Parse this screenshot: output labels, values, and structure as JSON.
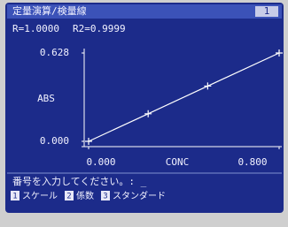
{
  "header": {
    "title": "定量演算/検量線",
    "badge": "1"
  },
  "chart_data": {
    "type": "line",
    "annotations": [
      "R=1.0000",
      "R2=0.9999"
    ],
    "ylabel": "ABS",
    "xlabel": "CONC",
    "x": [
      0,
      0.25,
      0.5,
      0.8
    ],
    "series": [
      {
        "color": "#ffffff",
        "values": [
          0,
          0.196,
          0.393,
          0.628
        ]
      }
    ],
    "xlim": [
      0,
      0.8
    ],
    "ylim": [
      0,
      0.628
    ],
    "xticks": [
      {
        "value": 0,
        "label": "0.000"
      },
      {
        "value": 0.8,
        "label": "0.800"
      }
    ],
    "yticks": [
      {
        "value": 0,
        "label": "0.000"
      },
      {
        "value": 0.628,
        "label": "0.628"
      }
    ]
  },
  "footer": {
    "prompt": "番号を入力してください。: _",
    "options": [
      {
        "key": "1",
        "label": "スケール"
      },
      {
        "key": "2",
        "label": "係数"
      },
      {
        "key": "3",
        "label": "スタンダード"
      }
    ]
  }
}
